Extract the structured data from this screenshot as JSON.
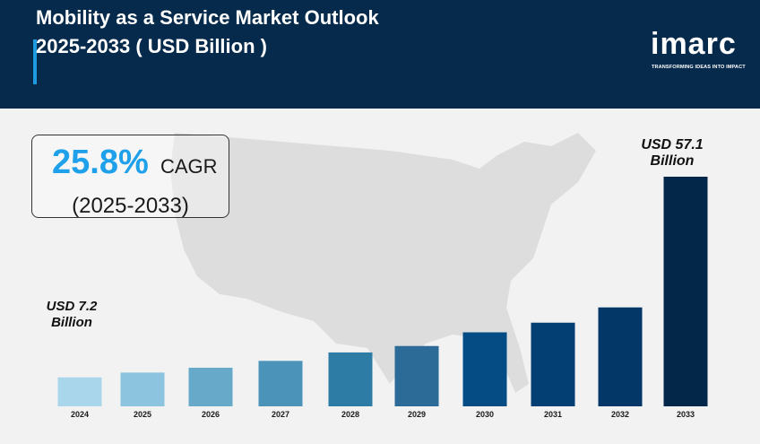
{
  "header": {
    "title_line1": "Mobility as a Service Market Outlook",
    "title_line2": "2025-2033 ( USD Billion )"
  },
  "logo": {
    "word": "imarc",
    "tagline": "TRANSFORMING IDEAS INTO IMPACT"
  },
  "cagr": {
    "value": "25.8%",
    "label": "CAGR",
    "period": "(2025-2033)"
  },
  "annotations": {
    "start_line1": "USD 7.2",
    "start_line2": "Billion",
    "end_line1": "USD 57.1",
    "end_line2": "Billion"
  },
  "colors": {
    "header_bg": "#062a4b",
    "accent": "#1e9be0",
    "cagr_text": "#1ea0ea"
  },
  "chart_data": {
    "type": "bar",
    "categories": [
      "2024",
      "2025",
      "2026",
      "2027",
      "2028",
      "2029",
      "2030",
      "2031",
      "2032",
      "2033"
    ],
    "values": [
      7.2,
      8.4,
      9.6,
      11.3,
      13.4,
      15.0,
      18.4,
      20.8,
      24.6,
      57.1
    ],
    "colors": [
      "#a9d6ea",
      "#8cc4df",
      "#66a9c9",
      "#4b93b9",
      "#2d7ca5",
      "#2c6a98",
      "#054c85",
      "#043f74",
      "#033767",
      "#022749"
    ],
    "xlabel": "",
    "ylabel": "",
    "grid": false,
    "legend": "none"
  }
}
